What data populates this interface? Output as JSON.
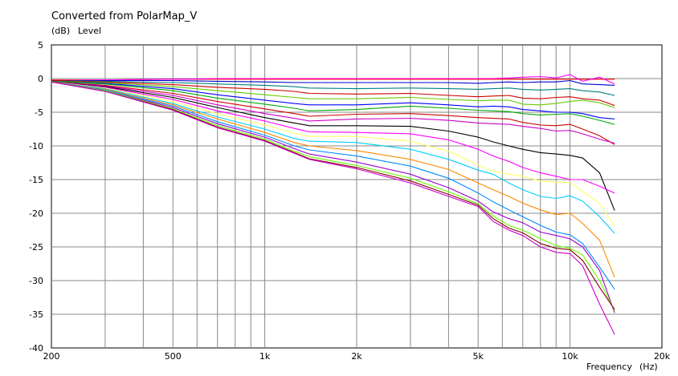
{
  "chart_data": {
    "type": "line",
    "title": "Converted from PolarMap_V",
    "ylabel_unit": "(dB)",
    "ylabel": "Level",
    "xlabel": "Frequency",
    "xlabel_unit": "(Hz)",
    "xscale": "log",
    "xlim": [
      200,
      20000
    ],
    "ylim": [
      -40,
      5
    ],
    "grid": true,
    "x_tick_labels": [
      "200",
      "500",
      "1k",
      "2k",
      "5k",
      "10k",
      "20k"
    ],
    "x_tick_values": [
      200,
      500,
      1000,
      2000,
      5000,
      10000,
      20000
    ],
    "y_tick_labels": [
      "5",
      "0",
      "-5",
      "-10",
      "-15",
      "-20",
      "-25",
      "-30",
      "-35",
      "-40"
    ],
    "y_tick_values": [
      5,
      0,
      -5,
      -10,
      -15,
      -20,
      -25,
      -30,
      -35,
      -40
    ],
    "x": [
      200,
      300,
      500,
      700,
      1000,
      1250,
      1400,
      2000,
      3000,
      4000,
      5000,
      5600,
      6300,
      7000,
      8000,
      9000,
      10000,
      11000,
      12500,
      14000
    ],
    "series": [
      {
        "color": "#ff0000",
        "values": [
          -0.2,
          -0.2,
          -0.1,
          -0.1,
          -0.1,
          -0.1,
          -0.1,
          -0.1,
          -0.1,
          -0.1,
          -0.1,
          -0.1,
          -0.1,
          -0.1,
          -0.1,
          -0.1,
          -0.1,
          -0.1,
          -0.1,
          -0.1
        ]
      },
      {
        "color": "#ff00ff",
        "values": [
          -0.3,
          -0.2,
          -0.1,
          0,
          0,
          0,
          0,
          0,
          0,
          0,
          0,
          0,
          0.1,
          0.2,
          0.3,
          0.1,
          0.6,
          -0.4,
          0.2,
          -0.8
        ]
      },
      {
        "color": "#0000cc",
        "values": [
          -0.3,
          -0.3,
          -0.3,
          -0.4,
          -0.5,
          -0.6,
          -0.6,
          -0.6,
          -0.6,
          -0.6,
          -0.7,
          -0.6,
          -0.5,
          -0.6,
          -0.5,
          -0.5,
          -0.3,
          -0.8,
          -0.9,
          -1.0
        ]
      },
      {
        "color": "#008080",
        "values": [
          -0.3,
          -0.4,
          -0.6,
          -0.8,
          -1.0,
          -1.2,
          -1.4,
          -1.5,
          -1.4,
          -1.5,
          -1.6,
          -1.5,
          -1.4,
          -1.6,
          -1.7,
          -1.6,
          -1.5,
          -1.8,
          -2.0,
          -2.5
        ]
      },
      {
        "color": "#cc0000",
        "values": [
          -0.3,
          -0.5,
          -0.9,
          -1.3,
          -1.6,
          -1.9,
          -2.2,
          -2.3,
          -2.2,
          -2.5,
          -2.7,
          -2.6,
          -2.5,
          -2.9,
          -3.0,
          -2.8,
          -2.7,
          -3.0,
          -3.2,
          -4.0
        ]
      },
      {
        "color": "#66cc00",
        "values": [
          -0.4,
          -0.6,
          -1.2,
          -1.8,
          -2.4,
          -2.8,
          -3.0,
          -3.0,
          -2.8,
          -3.1,
          -3.3,
          -3.2,
          -3.2,
          -3.8,
          -3.9,
          -3.7,
          -3.4,
          -3.2,
          -3.6,
          -4.3
        ]
      },
      {
        "color": "#0000ff",
        "values": [
          -0.4,
          -0.7,
          -1.5,
          -2.4,
          -3.2,
          -3.7,
          -3.9,
          -3.9,
          -3.6,
          -3.9,
          -4.2,
          -4.1,
          -4.2,
          -4.6,
          -4.8,
          -5.0,
          -5.0,
          -5.2,
          -5.8,
          -6.0
        ]
      },
      {
        "color": "#00aa00",
        "values": [
          -0.4,
          -0.8,
          -1.8,
          -2.9,
          -3.8,
          -4.4,
          -4.8,
          -4.6,
          -4.1,
          -4.4,
          -4.7,
          -4.8,
          -4.9,
          -5.2,
          -5.4,
          -5.3,
          -5.2,
          -5.6,
          -6.2,
          -6.8
        ]
      },
      {
        "color": "#cc0000",
        "values": [
          -0.5,
          -1.0,
          -2.2,
          -3.4,
          -4.5,
          -5.2,
          -5.6,
          -5.3,
          -5.2,
          -5.5,
          -5.8,
          -5.9,
          -6.0,
          -6.5,
          -6.9,
          -7.0,
          -6.8,
          -7.5,
          -8.5,
          -9.8
        ]
      },
      {
        "color": "#cc00cc",
        "values": [
          -0.5,
          -1.1,
          -2.5,
          -3.9,
          -5.2,
          -5.9,
          -6.3,
          -6.0,
          -5.9,
          -6.2,
          -6.6,
          -6.7,
          -6.8,
          -7.1,
          -7.4,
          -7.8,
          -7.7,
          -8.2,
          -9.0,
          -9.6
        ]
      },
      {
        "color": "#000000",
        "values": [
          -0.5,
          -1.2,
          -2.8,
          -4.3,
          -5.8,
          -6.6,
          -7.0,
          -7.0,
          -7.1,
          -7.8,
          -8.7,
          -9.4,
          -10.0,
          -10.5,
          -11.0,
          -11.2,
          -11.4,
          -11.8,
          -14.0,
          -19.6
        ]
      },
      {
        "color": "#ff00ff",
        "values": [
          -0.5,
          -1.3,
          -3.1,
          -4.8,
          -6.3,
          -7.4,
          -7.9,
          -8.0,
          -8.2,
          -9.1,
          -10.5,
          -11.5,
          -12.3,
          -13.2,
          -14.0,
          -14.5,
          -15.0,
          -15.0,
          -16.0,
          -17.0
        ]
      },
      {
        "color": "#ffff66",
        "values": [
          -0.5,
          -1.4,
          -3.4,
          -5.2,
          -6.9,
          -8.1,
          -8.6,
          -8.6,
          -9.3,
          -10.8,
          -12.8,
          -13.8,
          -14.2,
          -14.5,
          -15.2,
          -15.4,
          -15.4,
          -16.8,
          -18.5,
          -22.0
        ]
      },
      {
        "color": "#00ccff",
        "values": [
          -0.5,
          -1.5,
          -3.7,
          -5.7,
          -7.5,
          -8.9,
          -9.3,
          -9.5,
          -10.5,
          -12.0,
          -13.6,
          -14.2,
          -15.5,
          -16.5,
          -17.5,
          -17.8,
          -17.4,
          -18.2,
          -20.5,
          -23.0
        ]
      },
      {
        "color": "#ff8800",
        "values": [
          -0.5,
          -1.6,
          -3.9,
          -6.0,
          -8.0,
          -9.5,
          -10.0,
          -10.7,
          -12.0,
          -13.5,
          -15.5,
          -16.5,
          -17.5,
          -18.5,
          -19.5,
          -20.2,
          -20.0,
          -21.5,
          -24.0,
          -29.5
        ]
      },
      {
        "color": "#0088ff",
        "values": [
          -0.5,
          -1.7,
          -4.1,
          -6.4,
          -8.4,
          -10.0,
          -10.6,
          -11.5,
          -13.0,
          -14.8,
          -17.0,
          -18.3,
          -19.5,
          -20.5,
          -21.8,
          -22.8,
          -23.2,
          -24.5,
          -28.0,
          -31.3
        ]
      },
      {
        "color": "#9900cc",
        "values": [
          -0.5,
          -1.8,
          -4.3,
          -6.7,
          -8.7,
          -10.4,
          -11.2,
          -12.4,
          -14.2,
          -16.2,
          -18.2,
          -19.8,
          -20.8,
          -21.4,
          -22.8,
          -23.3,
          -23.8,
          -25.0,
          -28.5,
          -34.8
        ]
      },
      {
        "color": "#66ff00",
        "values": [
          -0.5,
          -1.8,
          -4.5,
          -7.0,
          -9.0,
          -10.8,
          -11.6,
          -12.9,
          -14.8,
          -16.8,
          -18.6,
          -20.4,
          -21.8,
          -22.5,
          -23.8,
          -24.8,
          -25.2,
          -26.2,
          -30.0,
          -34.5
        ]
      },
      {
        "color": "#800000",
        "values": [
          -0.5,
          -1.9,
          -4.6,
          -7.2,
          -9.2,
          -11.0,
          -11.9,
          -13.2,
          -15.2,
          -17.2,
          -18.8,
          -20.8,
          -22.2,
          -22.9,
          -24.5,
          -25.2,
          -25.4,
          -27.0,
          -31.0,
          -34.3
        ]
      },
      {
        "color": "#cc00cc",
        "values": [
          -0.5,
          -1.9,
          -4.7,
          -7.3,
          -9.3,
          -11.1,
          -12.0,
          -13.4,
          -15.5,
          -17.5,
          -19.0,
          -21.2,
          -22.5,
          -23.3,
          -25.0,
          -25.8,
          -26.0,
          -27.8,
          -33.5,
          -38.0
        ]
      }
    ]
  }
}
